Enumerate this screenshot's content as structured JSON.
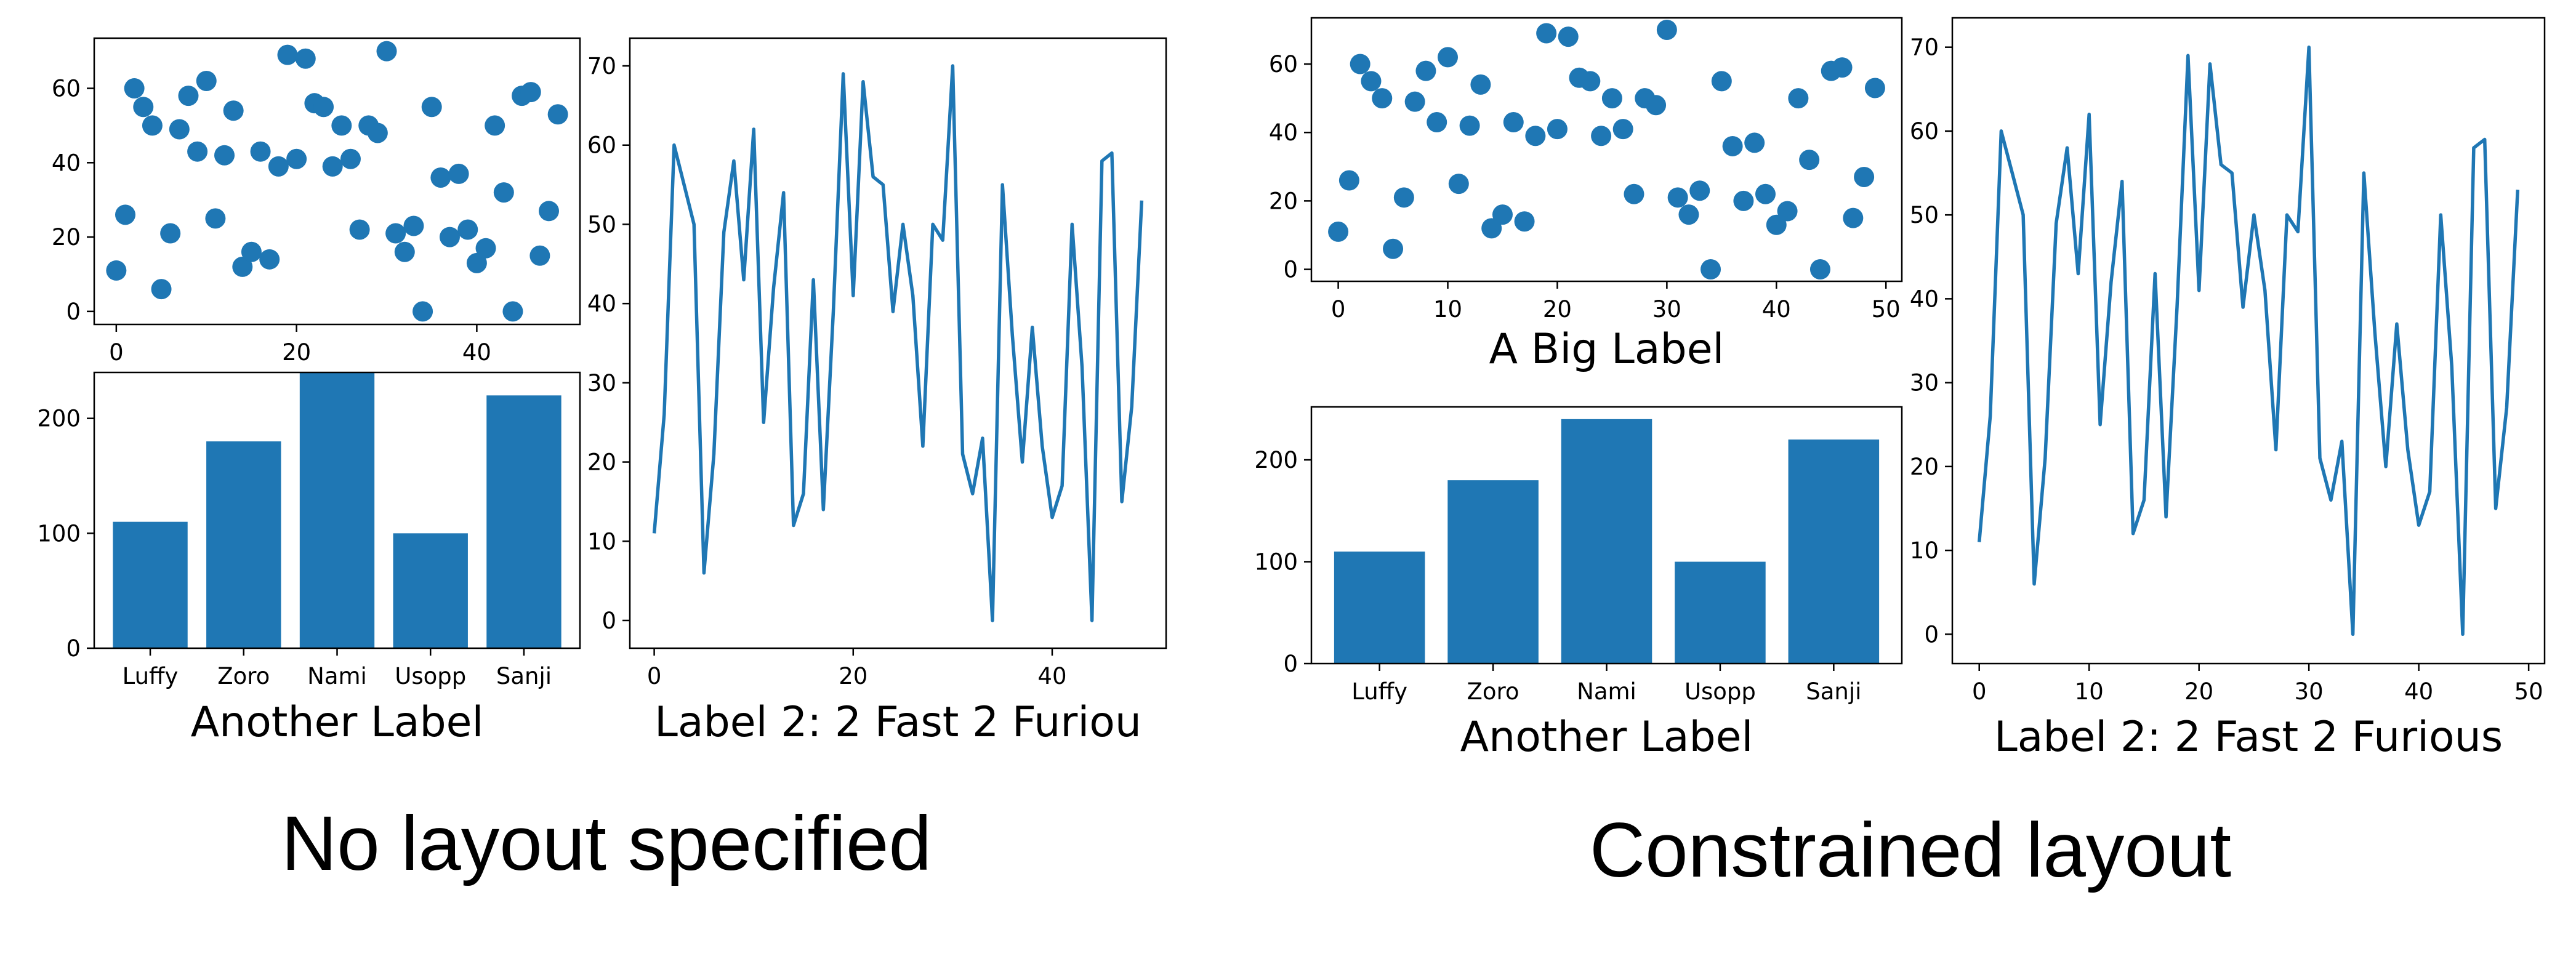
{
  "colors": {
    "series": "#1f77b4",
    "frame": "#000000",
    "background": "#ffffff"
  },
  "captions": {
    "left": "No layout specified",
    "right": "Constrained layout"
  },
  "chart_data": [
    {
      "panel": "left-scatter",
      "type": "scatter",
      "title": "",
      "xlabel": "",
      "ylabel": "",
      "x": [
        0,
        1,
        2,
        3,
        4,
        5,
        6,
        7,
        8,
        9,
        10,
        11,
        12,
        13,
        14,
        15,
        16,
        17,
        18,
        19,
        20,
        21,
        22,
        23,
        24,
        25,
        26,
        27,
        28,
        29,
        30,
        31,
        32,
        33,
        34,
        35,
        36,
        37,
        38,
        39,
        40,
        41,
        42,
        43,
        44,
        45,
        46,
        47,
        48,
        49
      ],
      "y": [
        11,
        26,
        60,
        55,
        50,
        6,
        21,
        49,
        58,
        43,
        62,
        25,
        42,
        54,
        12,
        16,
        43,
        14,
        39,
        69,
        41,
        68,
        56,
        55,
        39,
        50,
        41,
        22,
        50,
        48,
        70,
        21,
        16,
        23,
        0,
        55,
        36,
        20,
        37,
        22,
        13,
        17,
        50,
        32,
        0,
        58,
        59,
        15,
        27,
        53
      ],
      "xlim": [
        -2.45,
        51.45
      ],
      "ylim": [
        -3.5,
        73.5
      ],
      "xticks": [
        "0",
        "20",
        "40"
      ],
      "yticks": [
        "0",
        "20",
        "40",
        "60"
      ]
    },
    {
      "panel": "left-bar",
      "type": "bar",
      "title": "",
      "categories": [
        "Luffy",
        "Zoro",
        "Nami",
        "Usopp",
        "Sanji"
      ],
      "values": [
        110,
        180,
        240,
        100,
        220
      ],
      "xlabel": "Another Label",
      "ylabel": "",
      "ylim": [
        0,
        240
      ],
      "yticks": [
        "0",
        "100",
        "200"
      ]
    },
    {
      "panel": "left-line",
      "type": "line",
      "title": "",
      "x": [
        0,
        1,
        2,
        3,
        4,
        5,
        6,
        7,
        8,
        9,
        10,
        11,
        12,
        13,
        14,
        15,
        16,
        17,
        18,
        19,
        20,
        21,
        22,
        23,
        24,
        25,
        26,
        27,
        28,
        29,
        30,
        31,
        32,
        33,
        34,
        35,
        36,
        37,
        38,
        39,
        40,
        41,
        42,
        43,
        44,
        45,
        46,
        47,
        48,
        49
      ],
      "y": [
        11,
        26,
        60,
        55,
        50,
        6,
        21,
        49,
        58,
        43,
        62,
        25,
        42,
        54,
        12,
        16,
        43,
        14,
        39,
        69,
        41,
        68,
        56,
        55,
        39,
        50,
        41,
        22,
        50,
        48,
        70,
        21,
        16,
        23,
        0,
        55,
        36,
        20,
        37,
        22,
        13,
        17,
        50,
        32,
        0,
        58,
        59,
        15,
        27,
        53
      ],
      "xlabel": "Label 2: 2 Fast 2 Furiou",
      "ylabel": "",
      "xlim": [
        -2.45,
        51.45
      ],
      "ylim": [
        -3.5,
        73.5
      ],
      "xticks": [
        "0",
        "20",
        "40"
      ],
      "yticks": [
        "0",
        "10",
        "20",
        "30",
        "40",
        "50",
        "60",
        "70"
      ]
    },
    {
      "panel": "right-scatter",
      "type": "scatter",
      "title": "",
      "x": [
        0,
        1,
        2,
        3,
        4,
        5,
        6,
        7,
        8,
        9,
        10,
        11,
        12,
        13,
        14,
        15,
        16,
        17,
        18,
        19,
        20,
        21,
        22,
        23,
        24,
        25,
        26,
        27,
        28,
        29,
        30,
        31,
        32,
        33,
        34,
        35,
        36,
        37,
        38,
        39,
        40,
        41,
        42,
        43,
        44,
        45,
        46,
        47,
        48,
        49
      ],
      "y": [
        11,
        26,
        60,
        55,
        50,
        6,
        21,
        49,
        58,
        43,
        62,
        25,
        42,
        54,
        12,
        16,
        43,
        14,
        39,
        69,
        41,
        68,
        56,
        55,
        39,
        50,
        41,
        22,
        50,
        48,
        70,
        21,
        16,
        23,
        0,
        55,
        36,
        20,
        37,
        22,
        13,
        17,
        50,
        32,
        0,
        58,
        59,
        15,
        27,
        53
      ],
      "xlabel": "A Big Label",
      "ylabel": "",
      "xlim": [
        -2.45,
        51.45
      ],
      "ylim": [
        -3.5,
        73.5
      ],
      "xticks": [
        "0",
        "10",
        "20",
        "30",
        "40",
        "50"
      ],
      "yticks": [
        "0",
        "20",
        "40",
        "60"
      ]
    },
    {
      "panel": "right-bar",
      "type": "bar",
      "title": "",
      "categories": [
        "Luffy",
        "Zoro",
        "Nami",
        "Usopp",
        "Sanji"
      ],
      "values": [
        110,
        180,
        240,
        100,
        220
      ],
      "xlabel": "Another Label",
      "ylabel": "",
      "ylim": [
        0,
        252
      ],
      "yticks": [
        "0",
        "100",
        "200"
      ]
    },
    {
      "panel": "right-line",
      "type": "line",
      "title": "",
      "x": [
        0,
        1,
        2,
        3,
        4,
        5,
        6,
        7,
        8,
        9,
        10,
        11,
        12,
        13,
        14,
        15,
        16,
        17,
        18,
        19,
        20,
        21,
        22,
        23,
        24,
        25,
        26,
        27,
        28,
        29,
        30,
        31,
        32,
        33,
        34,
        35,
        36,
        37,
        38,
        39,
        40,
        41,
        42,
        43,
        44,
        45,
        46,
        47,
        48,
        49
      ],
      "y": [
        11,
        26,
        60,
        55,
        50,
        6,
        21,
        49,
        58,
        43,
        62,
        25,
        42,
        54,
        12,
        16,
        43,
        14,
        39,
        69,
        41,
        68,
        56,
        55,
        39,
        50,
        41,
        22,
        50,
        48,
        70,
        21,
        16,
        23,
        0,
        55,
        36,
        20,
        37,
        22,
        13,
        17,
        50,
        32,
        0,
        58,
        59,
        15,
        27,
        53
      ],
      "xlabel": "Label 2: 2 Fast 2 Furious",
      "ylabel": "",
      "xlim": [
        -2.45,
        51.45
      ],
      "ylim": [
        -3.5,
        73.5
      ],
      "xticks": [
        "0",
        "10",
        "20",
        "30",
        "40",
        "50"
      ],
      "yticks": [
        "0",
        "10",
        "20",
        "30",
        "40",
        "50",
        "60",
        "70"
      ]
    }
  ]
}
